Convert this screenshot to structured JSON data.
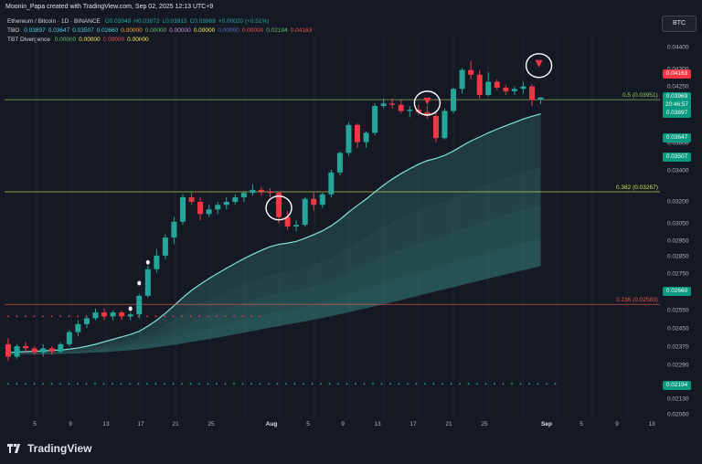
{
  "header": {
    "author_line": "Moonin_Papa created with TradingView.com, Sep 02, 2025 12:13 UTC+9"
  },
  "legend": {
    "symbol": {
      "name": "Ethereum / Bitcoin · 1D · BINANCE",
      "values": [
        {
          "label": "O",
          "value": "0.03949",
          "color": "#26a69a"
        },
        {
          "label": "H",
          "value": "0.03972",
          "color": "#26a69a"
        },
        {
          "label": "L",
          "value": "0.03915",
          "color": "#26a69a"
        },
        {
          "label": "C",
          "value": "0.03969",
          "color": "#26a69a"
        },
        {
          "label": "",
          "value": "+0.00020 (+0.51%)",
          "color": "#26a69a"
        }
      ]
    },
    "tbo": {
      "name": "TBO",
      "values": [
        {
          "value": "0.03897",
          "color": "#4dd0e1"
        },
        {
          "value": "0.03647",
          "color": "#4dd0e1"
        },
        {
          "value": "0.03507",
          "color": "#4dd0e1"
        },
        {
          "value": "0.02660",
          "color": "#4dd0e1"
        },
        {
          "value": "0.00000",
          "color": "#ffa726"
        },
        {
          "value": "0.00000",
          "color": "#66bb6a"
        },
        {
          "value": "0.00000",
          "color": "#ce93d8"
        },
        {
          "value": "0.00000",
          "color": "#ffee58"
        },
        {
          "value": "0.00000",
          "color": "#5c6bc0"
        },
        {
          "value": "0.00000",
          "color": "#ef5350"
        },
        {
          "value": "0.02194",
          "color": "#66bb6a"
        },
        {
          "value": "0.04163",
          "color": "#ef5350"
        }
      ]
    },
    "tbt": {
      "name": "TBT Divergence",
      "values": [
        {
          "value": "0.00000",
          "color": "#66bb6a"
        },
        {
          "value": "0.00000",
          "color": "#ffee58"
        },
        {
          "value": "0.00000",
          "color": "#ef5350"
        },
        {
          "value": "0.00000",
          "color": "#ffee58"
        }
      ]
    }
  },
  "currency_button": "BTC",
  "y_axis": {
    "ticks": [
      "0.04400",
      "0.04300",
      "0.04250",
      "0.03800",
      "0.03600",
      "0.03400",
      "0.03200",
      "0.03050",
      "0.02950",
      "0.02850",
      "0.02750",
      "0.02650",
      "0.02550",
      "0.02450",
      "0.02370",
      "0.02290",
      "0.02130",
      "0.02060"
    ],
    "tags": [
      {
        "value": "0.04163",
        "color": "#f23645"
      },
      {
        "value": "0.03969",
        "sub": "20:46:57",
        "color": "#089981"
      },
      {
        "value": "0.03897",
        "color": "#089981"
      },
      {
        "value": "0.03647",
        "color": "#089981"
      },
      {
        "value": "0.03507",
        "color": "#089981"
      },
      {
        "value": "0.02660",
        "color": "#089981"
      },
      {
        "value": "0.02194",
        "color": "#089981"
      }
    ]
  },
  "x_axis": {
    "labels": [
      {
        "text": "5",
        "bold": false
      },
      {
        "text": "9",
        "bold": false
      },
      {
        "text": "13",
        "bold": false
      },
      {
        "text": "17",
        "bold": false
      },
      {
        "text": "21",
        "bold": false
      },
      {
        "text": "25",
        "bold": false
      },
      {
        "text": "Aug",
        "bold": true
      },
      {
        "text": "5",
        "bold": false
      },
      {
        "text": "9",
        "bold": false
      },
      {
        "text": "13",
        "bold": false
      },
      {
        "text": "17",
        "bold": false
      },
      {
        "text": "21",
        "bold": false
      },
      {
        "text": "25",
        "bold": false
      },
      {
        "text": "Sep",
        "bold": true
      },
      {
        "text": "5",
        "bold": false
      },
      {
        "text": "9",
        "bold": false
      },
      {
        "text": "13",
        "bold": false
      }
    ]
  },
  "fib_levels": [
    {
      "label": "0.5 (0.03951)",
      "color": "#9ccc65"
    },
    {
      "label": "0.382 (0.03267)",
      "color": "#d4e157"
    },
    {
      "label": "0.236 (0.02583)",
      "color": "#ef5350"
    }
  ],
  "footer": {
    "brand": "TradingView"
  },
  "colors": {
    "up": "#26a69a",
    "down": "#f23645",
    "band": "#4db6ac",
    "background": "#151924"
  },
  "chart_data": {
    "type": "candlestick",
    "symbol": "ETH/BTC",
    "interval": "1D",
    "candles_ohlc": [
      [
        0.0238,
        0.0241,
        0.023,
        0.0232
      ],
      [
        0.0232,
        0.0238,
        0.0231,
        0.0237
      ],
      [
        0.0237,
        0.0239,
        0.0234,
        0.0236
      ],
      [
        0.0236,
        0.0237,
        0.0233,
        0.0234
      ],
      [
        0.0234,
        0.0238,
        0.0232,
        0.0236
      ],
      [
        0.0236,
        0.0237,
        0.0233,
        0.02345
      ],
      [
        0.02345,
        0.0239,
        0.02335,
        0.0238
      ],
      [
        0.0238,
        0.0245,
        0.0237,
        0.0244
      ],
      [
        0.0244,
        0.025,
        0.0242,
        0.0248
      ],
      [
        0.0248,
        0.0252,
        0.0246,
        0.0251
      ],
      [
        0.0251,
        0.0256,
        0.025,
        0.0254
      ],
      [
        0.0254,
        0.0256,
        0.025,
        0.0252
      ],
      [
        0.0252,
        0.0255,
        0.025,
        0.0254
      ],
      [
        0.0254,
        0.0255,
        0.025,
        0.0252
      ],
      [
        0.0252,
        0.0254,
        0.025,
        0.0253
      ],
      [
        0.0253,
        0.0264,
        0.0251,
        0.0263
      ],
      [
        0.0263,
        0.028,
        0.0262,
        0.0278
      ],
      [
        0.0278,
        0.029,
        0.0276,
        0.0286
      ],
      [
        0.0286,
        0.0299,
        0.0284,
        0.0297
      ],
      [
        0.0297,
        0.031,
        0.0293,
        0.0307
      ],
      [
        0.0307,
        0.0325,
        0.0305,
        0.0323
      ],
      [
        0.0323,
        0.0326,
        0.0318,
        0.032
      ],
      [
        0.032,
        0.0323,
        0.0308,
        0.0312
      ],
      [
        0.0312,
        0.0318,
        0.031,
        0.0315
      ],
      [
        0.0315,
        0.032,
        0.0312,
        0.0318
      ],
      [
        0.0318,
        0.0323,
        0.0315,
        0.032
      ],
      [
        0.032,
        0.0325,
        0.0318,
        0.0323
      ],
      [
        0.0323,
        0.0327,
        0.032,
        0.0326
      ],
      [
        0.0326,
        0.0332,
        0.0324,
        0.0328
      ],
      [
        0.0328,
        0.033,
        0.0324,
        0.0327
      ],
      [
        0.0327,
        0.0329,
        0.0323,
        0.0326
      ],
      [
        0.0326,
        0.0327,
        0.0306,
        0.031
      ],
      [
        0.031,
        0.0314,
        0.0302,
        0.0304
      ],
      [
        0.0304,
        0.0308,
        0.0301,
        0.0305
      ],
      [
        0.0305,
        0.0323,
        0.0304,
        0.0322
      ],
      [
        0.0322,
        0.0326,
        0.0314,
        0.0318
      ],
      [
        0.0318,
        0.0326,
        0.0316,
        0.0325
      ],
      [
        0.0325,
        0.0342,
        0.0323,
        0.034
      ],
      [
        0.034,
        0.0355,
        0.0338,
        0.0354
      ],
      [
        0.0354,
        0.0377,
        0.0352,
        0.0375
      ],
      [
        0.0375,
        0.0376,
        0.0358,
        0.0362
      ],
      [
        0.0362,
        0.037,
        0.0358,
        0.0369
      ],
      [
        0.0369,
        0.0392,
        0.0367,
        0.039
      ],
      [
        0.039,
        0.0396,
        0.0388,
        0.0392
      ],
      [
        0.0392,
        0.0396,
        0.0388,
        0.0391
      ],
      [
        0.0391,
        0.0395,
        0.0384,
        0.0386
      ],
      [
        0.0386,
        0.039,
        0.0381,
        0.0387
      ],
      [
        0.0387,
        0.0391,
        0.0383,
        0.0385
      ],
      [
        0.0385,
        0.039,
        0.038,
        0.0382
      ],
      [
        0.0382,
        0.0386,
        0.0362,
        0.0365
      ],
      [
        0.0365,
        0.0388,
        0.0364,
        0.0386
      ],
      [
        0.0386,
        0.0405,
        0.0384,
        0.0404
      ],
      [
        0.0404,
        0.0422,
        0.04,
        0.042
      ],
      [
        0.042,
        0.0428,
        0.0412,
        0.0416
      ],
      [
        0.0416,
        0.042,
        0.0396,
        0.0399
      ],
      [
        0.0399,
        0.0418,
        0.0398,
        0.041
      ],
      [
        0.041,
        0.0412,
        0.0403,
        0.0405
      ],
      [
        0.0405,
        0.0407,
        0.0399,
        0.0402
      ],
      [
        0.0402,
        0.0406,
        0.0399,
        0.0404
      ],
      [
        0.0404,
        0.041,
        0.04,
        0.0406
      ],
      [
        0.0406,
        0.0408,
        0.039,
        0.03949
      ],
      [
        0.03949,
        0.03972,
        0.03915,
        0.03969
      ]
    ],
    "ma_line": [
      0.0234,
      0.02342,
      0.02344,
      0.02346,
      0.02348,
      0.0235,
      0.02352,
      0.02356,
      0.02362,
      0.0237,
      0.0238,
      0.02392,
      0.02404,
      0.02416,
      0.02428,
      0.02444,
      0.0247,
      0.025,
      0.02536,
      0.02576,
      0.0262,
      0.0266,
      0.02694,
      0.02726,
      0.02756,
      0.02786,
      0.02814,
      0.02842,
      0.02868,
      0.02892,
      0.02914,
      0.02928,
      0.02936,
      0.02946,
      0.02966,
      0.02988,
      0.03012,
      0.03044,
      0.03084,
      0.03132,
      0.03176,
      0.03218,
      0.03266,
      0.03312,
      0.03354,
      0.03392,
      0.03426,
      0.03458,
      0.03484,
      0.035,
      0.03522,
      0.03554,
      0.03592,
      0.03628,
      0.03658,
      0.0369,
      0.03718,
      0.03744,
      0.0377,
      0.03796,
      0.03818,
      0.03837
    ],
    "band_lower": [
      0.0233,
      0.0233,
      0.02331,
      0.02331,
      0.02332,
      0.02332,
      0.02333,
      0.02334,
      0.02336,
      0.02338,
      0.0234,
      0.02342,
      0.02345,
      0.02348,
      0.02351,
      0.02355,
      0.0236,
      0.02365,
      0.02371,
      0.02377,
      0.02384,
      0.02391,
      0.02398,
      0.02405,
      0.02413,
      0.02421,
      0.02429,
      0.02437,
      0.02445,
      0.02454,
      0.02462,
      0.0247,
      0.02478,
      0.02486,
      0.02494,
      0.02503,
      0.02512,
      0.02521,
      0.02531,
      0.02541,
      0.02551,
      0.02562,
      0.02573,
      0.02584,
      0.02595,
      0.02606,
      0.02618,
      0.0263,
      0.02642,
      0.02654,
      0.02666,
      0.02678,
      0.0269,
      0.02702,
      0.02714,
      0.02726,
      0.02738,
      0.0275,
      0.02762,
      0.02774,
      0.02786,
      0.02798
    ],
    "fib_prices": [
      0.03951,
      0.03267,
      0.02583
    ],
    "support_dots": [
      0.0252,
      0.02194
    ]
  }
}
